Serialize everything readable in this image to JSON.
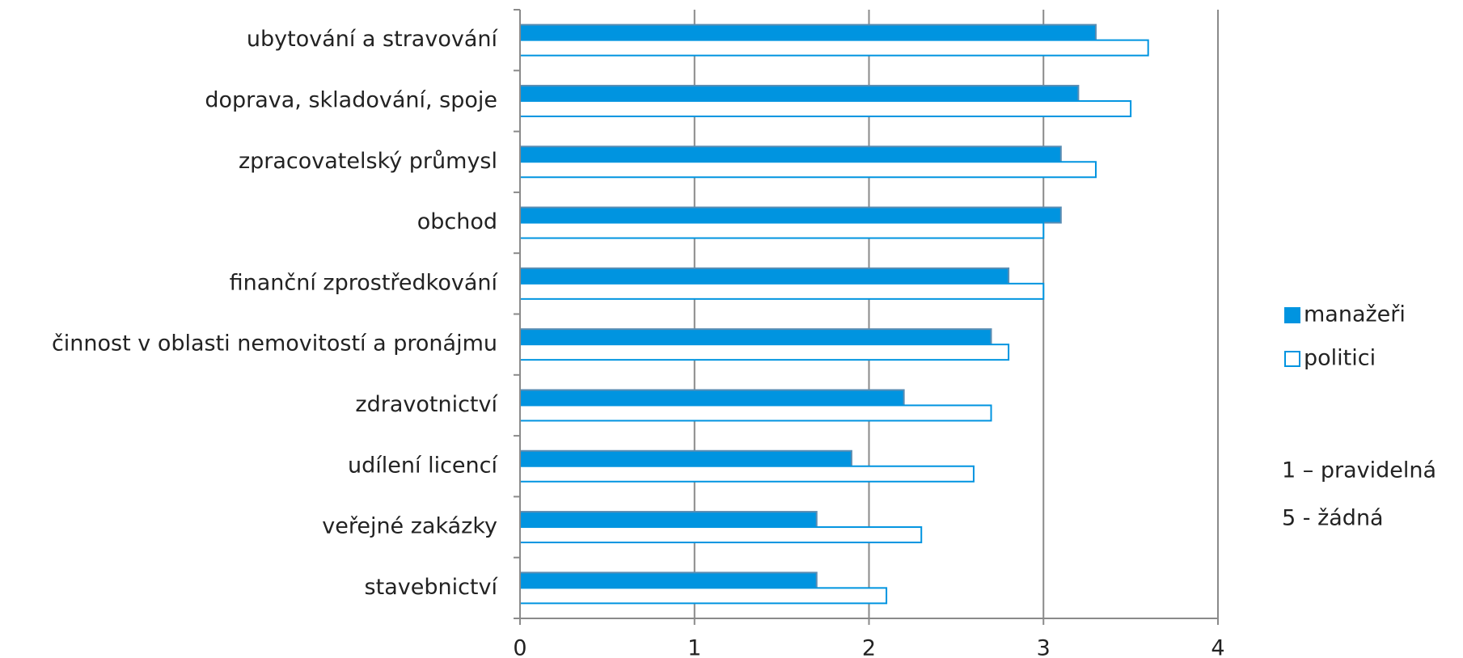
{
  "chart_data": {
    "type": "hbar",
    "categories": [
      "ubytování a stravování",
      "doprava, skladování, spoje",
      "zpracovatelský průmysl",
      "obchod",
      "finanční zprostředkování",
      "činnost v oblasti nemovitostí a pronájmu",
      "zdravotnictví",
      "udílení licencí",
      "veřejné zakázky",
      "stavebnictví"
    ],
    "series": [
      {
        "name": "manažeři",
        "color": "#0094e0",
        "values": [
          3.3,
          3.2,
          3.1,
          3.1,
          2.8,
          2.7,
          2.2,
          1.9,
          1.7,
          1.7
        ]
      },
      {
        "name": "politici",
        "color": "#ffffff",
        "values": [
          3.6,
          3.5,
          3.3,
          3.0,
          3.0,
          2.8,
          2.7,
          2.6,
          2.3,
          2.1
        ]
      }
    ],
    "xlim": [
      0,
      4
    ],
    "xticks": [
      0,
      1,
      2,
      3,
      4
    ],
    "grid": true,
    "legend": "right",
    "notes": [
      "1 – pravidelná",
      "5 - žádná"
    ]
  }
}
